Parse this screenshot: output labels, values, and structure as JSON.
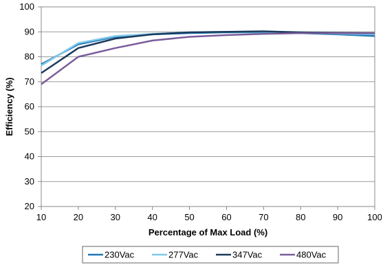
{
  "chart_data": {
    "type": "line",
    "title": "",
    "xlabel": "Percentage of Max Load (%)",
    "ylabel": "Efficiency (%)",
    "x": [
      10,
      20,
      30,
      40,
      50,
      60,
      70,
      80,
      90,
      100
    ],
    "xlim": [
      10,
      100
    ],
    "ylim": [
      20,
      100
    ],
    "xticks": [
      "10",
      "20",
      "30",
      "40",
      "50",
      "60",
      "70",
      "80",
      "90",
      "100"
    ],
    "yticks": [
      "20",
      "30",
      "40",
      "50",
      "60",
      "70",
      "80",
      "90",
      "100"
    ],
    "grid": "horizontal",
    "legend_position": "bottom",
    "series": [
      {
        "name": "230Vac",
        "color": "#1f77b4",
        "values": [
          77.0,
          85.0,
          88.0,
          89.0,
          89.5,
          89.8,
          89.8,
          89.5,
          89.0,
          88.3
        ]
      },
      {
        "name": "277Vac",
        "color": "#7fc8ea",
        "values": [
          76.5,
          85.5,
          88.3,
          89.2,
          89.8,
          90.0,
          90.0,
          89.7,
          89.3,
          89.0
        ]
      },
      {
        "name": "347Vac",
        "color": "#1a3a5c",
        "values": [
          73.5,
          83.5,
          87.3,
          89.0,
          89.8,
          90.0,
          90.2,
          89.8,
          89.6,
          89.5
        ]
      },
      {
        "name": "480Vac",
        "color": "#7a5c9a",
        "values": [
          69.0,
          80.0,
          83.5,
          86.5,
          88.0,
          88.7,
          89.2,
          89.5,
          89.5,
          89.5
        ]
      }
    ]
  }
}
